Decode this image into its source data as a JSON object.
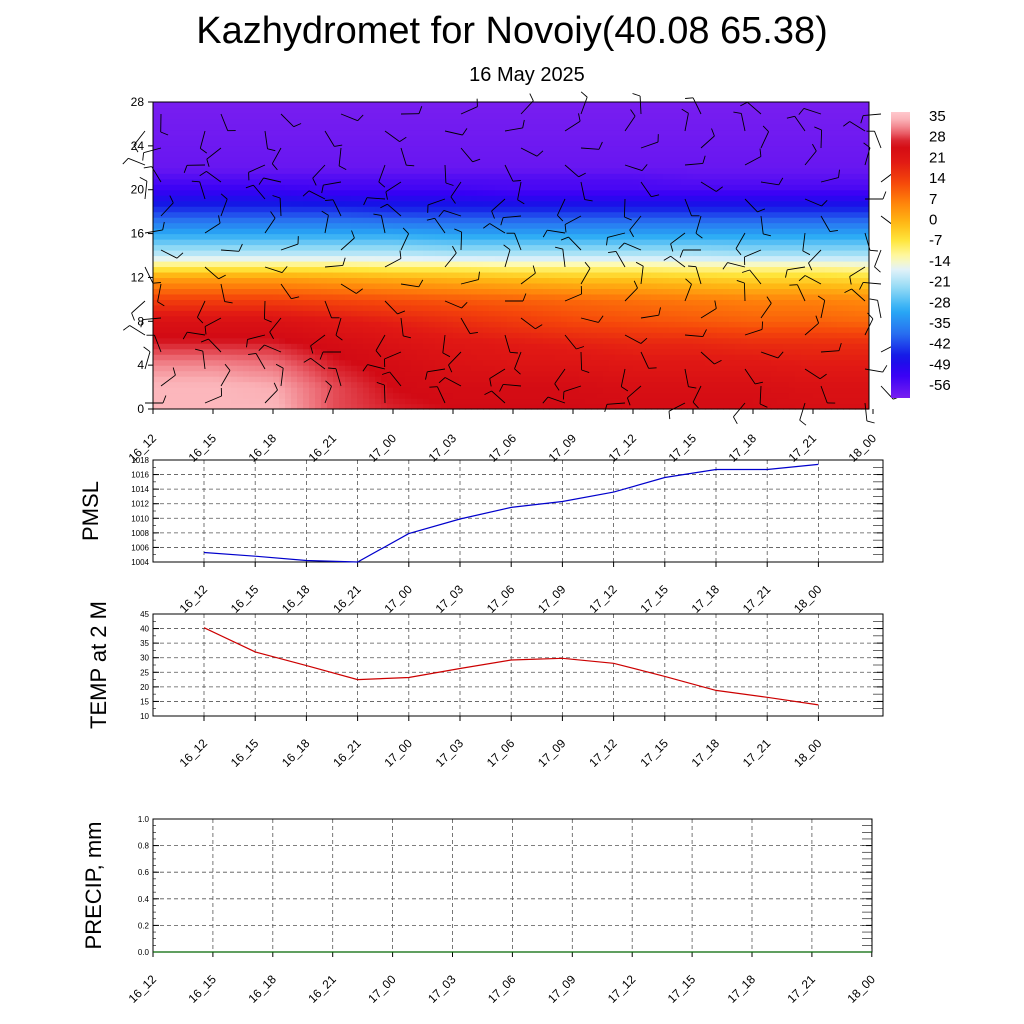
{
  "header": {
    "title": "Kazhydromet for Novoiy(40.08 65.38)",
    "subtitle": "16 May 2025"
  },
  "colors": {
    "pmsl_line": "#0000cc",
    "temp_line": "#cc0000",
    "precip_line": "#006600",
    "grid": "#555555"
  },
  "chart_data": [
    {
      "type": "heatmap",
      "name": "vertical cross-section temperature with wind barbs",
      "x_ticks": [
        "16_12",
        "16_15",
        "16_18",
        "16_21",
        "17_00",
        "17_03",
        "17_06",
        "17_09",
        "17_12",
        "17_15",
        "17_18",
        "17_21",
        "18_00"
      ],
      "y_ticks": [
        "0",
        "4",
        "8",
        "12",
        "16",
        "20",
        "24",
        "28"
      ],
      "ylim": [
        0,
        28
      ],
      "colorbar_labels": [
        "35",
        "28",
        "21",
        "14",
        "7",
        "0",
        "-7",
        "-14",
        "-21",
        "-28",
        "-35",
        "-42",
        "-49",
        "-56"
      ],
      "colorbar_range": [
        -60,
        38
      ],
      "wind_barbs": true,
      "temperature_levels": [
        {
          "level": 0,
          "values": [
            36,
            36,
            36,
            30,
            28,
            27,
            27,
            27,
            26,
            26,
            26,
            25,
            25
          ]
        },
        {
          "level": 2,
          "values": [
            36,
            36,
            35,
            30,
            27,
            26,
            26,
            26,
            25,
            25,
            25,
            24,
            24
          ]
        },
        {
          "level": 4,
          "values": [
            33,
            33,
            32,
            28,
            26,
            24,
            23,
            23,
            22,
            22,
            22,
            21,
            21
          ]
        },
        {
          "level": 6,
          "values": [
            28,
            28,
            28,
            26,
            24,
            22,
            21,
            20,
            19,
            19,
            18,
            18,
            18
          ]
        },
        {
          "level": 8,
          "values": [
            24,
            24,
            24,
            22,
            20,
            18,
            16,
            14,
            13,
            12,
            11,
            11,
            10
          ]
        },
        {
          "level": 10,
          "values": [
            15,
            15,
            15,
            14,
            13,
            12,
            11,
            10,
            9,
            8,
            7,
            7,
            6
          ]
        },
        {
          "level": 12,
          "values": [
            3,
            3,
            3,
            2,
            1,
            0,
            -1,
            -2,
            -2,
            -3,
            -4,
            -4,
            -5
          ]
        },
        {
          "level": 13,
          "values": [
            -8,
            -8,
            -8,
            -8,
            -9,
            -9,
            -10,
            -10,
            -10,
            -11,
            -11,
            -11,
            -12
          ]
        },
        {
          "level": 14,
          "values": [
            -18,
            -18,
            -18,
            -18,
            -18,
            -19,
            -19,
            -19,
            -19,
            -19,
            -20,
            -20,
            -20
          ]
        },
        {
          "level": 16,
          "values": [
            -30,
            -30,
            -30,
            -30,
            -30,
            -31,
            -31,
            -31,
            -31,
            -31,
            -31,
            -31,
            -31
          ]
        },
        {
          "level": 18,
          "values": [
            -42,
            -42,
            -42,
            -42,
            -43,
            -43,
            -43,
            -43,
            -43,
            -43,
            -43,
            -43,
            -43
          ]
        },
        {
          "level": 20,
          "values": [
            -52,
            -52,
            -52,
            -53,
            -53,
            -53,
            -54,
            -54,
            -54,
            -54,
            -54,
            -54,
            -54
          ]
        },
        {
          "level": 21,
          "values": [
            -55,
            -55,
            -55,
            -55,
            -55,
            -55,
            -55,
            -55,
            -55,
            -56,
            -56,
            -56,
            -56
          ]
        },
        {
          "level": 22,
          "values": [
            -58,
            -58,
            -58,
            -58,
            -58,
            -58,
            -58,
            -58,
            -58,
            -58,
            -58,
            -58,
            -58
          ]
        },
        {
          "level": 28,
          "values": [
            -60,
            -60,
            -60,
            -60,
            -60,
            -60,
            -60,
            -60,
            -60,
            -60,
            -60,
            -60,
            -60
          ]
        }
      ]
    },
    {
      "type": "line",
      "ylabel": "PMSL",
      "x_ticks": [
        "16_12",
        "16_15",
        "16_18",
        "16_21",
        "17_00",
        "17_03",
        "17_06",
        "17_09",
        "17_12",
        "17_15",
        "17_18",
        "17_21",
        "18_00"
      ],
      "y_ticks": [
        "1004",
        "1006",
        "1008",
        "1010",
        "1012",
        "1014",
        "1016",
        "1018"
      ],
      "ylim": [
        1004,
        1018
      ],
      "grid": true,
      "series": [
        {
          "values": [
            1005.3,
            1004.8,
            1004.2,
            1004.0,
            1007.9,
            1009.9,
            1011.5,
            1012.3,
            1013.6,
            1015.6,
            1016.7,
            1016.7,
            1017.4
          ]
        }
      ]
    },
    {
      "type": "line",
      "ylabel": "TEMP at 2 M",
      "x_ticks": [
        "16_12",
        "16_15",
        "16_18",
        "16_21",
        "17_00",
        "17_03",
        "17_06",
        "17_09",
        "17_12",
        "17_15",
        "17_18",
        "17_21",
        "18_00"
      ],
      "y_ticks": [
        "10",
        "15",
        "20",
        "25",
        "30",
        "35",
        "40",
        "45"
      ],
      "ylim": [
        10,
        45
      ],
      "grid": true,
      "series": [
        {
          "values": [
            40.3,
            32.0,
            27.3,
            22.5,
            23.2,
            26.3,
            29.2,
            29.8,
            28.1,
            23.6,
            18.8,
            16.4,
            13.8
          ]
        }
      ]
    },
    {
      "type": "line",
      "ylabel": "PRECIP, mm",
      "x_ticks": [
        "16_12",
        "16_15",
        "16_18",
        "16_21",
        "17_00",
        "17_03",
        "17_06",
        "17_09",
        "17_12",
        "17_15",
        "17_18",
        "17_21",
        "18_00"
      ],
      "y_ticks": [
        "0.0",
        "0.2",
        "0.4",
        "0.6",
        "0.8",
        "1.0"
      ],
      "ylim": [
        0,
        1
      ],
      "grid": true,
      "series": [
        {
          "values": [
            0,
            0,
            0,
            0,
            0,
            0,
            0,
            0,
            0,
            0,
            0,
            0,
            0
          ]
        }
      ]
    }
  ]
}
